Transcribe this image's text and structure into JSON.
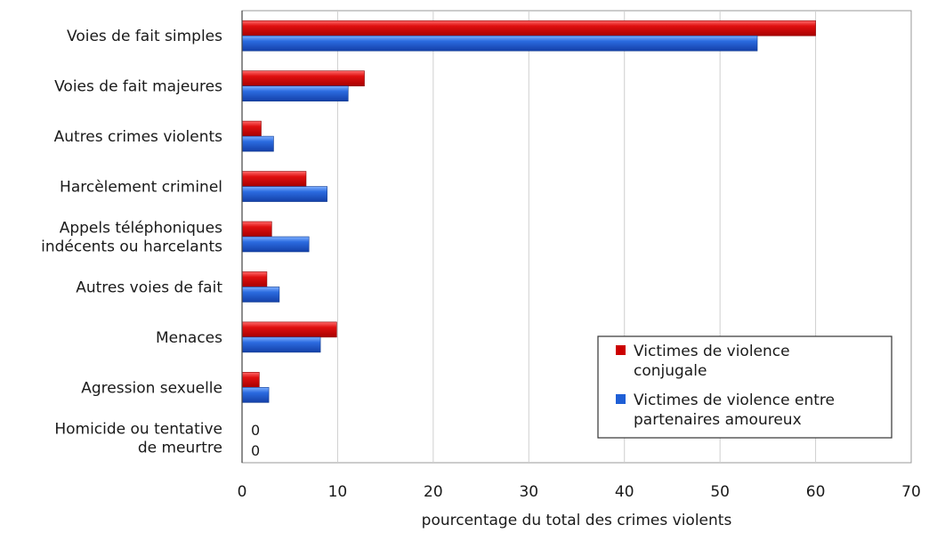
{
  "chart_data": {
    "type": "bar",
    "orientation": "horizontal",
    "categories": [
      [
        "Voies de fait simples"
      ],
      [
        "Voies de fait majeures"
      ],
      [
        "Autres crimes violents"
      ],
      [
        "Harcèlement criminel"
      ],
      [
        "Appels téléphoniques",
        "indécents ou harcelants"
      ],
      [
        "Autres voies de fait"
      ],
      [
        "Menaces"
      ],
      [
        "Agression sexuelle"
      ],
      [
        "Homicide ou tentative",
        "de meurtre"
      ]
    ],
    "series": [
      {
        "name": [
          "Victimes de violence",
          "conjugale"
        ],
        "color": "#cc0000",
        "values": [
          60,
          12.8,
          2,
          6.7,
          3.1,
          2.6,
          9.9,
          1.8,
          0
        ]
      },
      {
        "name": [
          "Victimes de violence entre",
          "partenaires amoureux"
        ],
        "color": "#1f5fd6",
        "values": [
          53.9,
          11.1,
          3.3,
          8.9,
          7.0,
          3.9,
          8.2,
          2.8,
          0
        ]
      }
    ],
    "zero_labels": [
      "0",
      "0"
    ],
    "xlabel": "pourcentage du total des crimes violents",
    "xlim": [
      0,
      70
    ],
    "xticks": [
      "0",
      "10",
      "20",
      "30",
      "40",
      "50",
      "60",
      "70"
    ],
    "grid": true,
    "legend_position": "bottom-right"
  }
}
